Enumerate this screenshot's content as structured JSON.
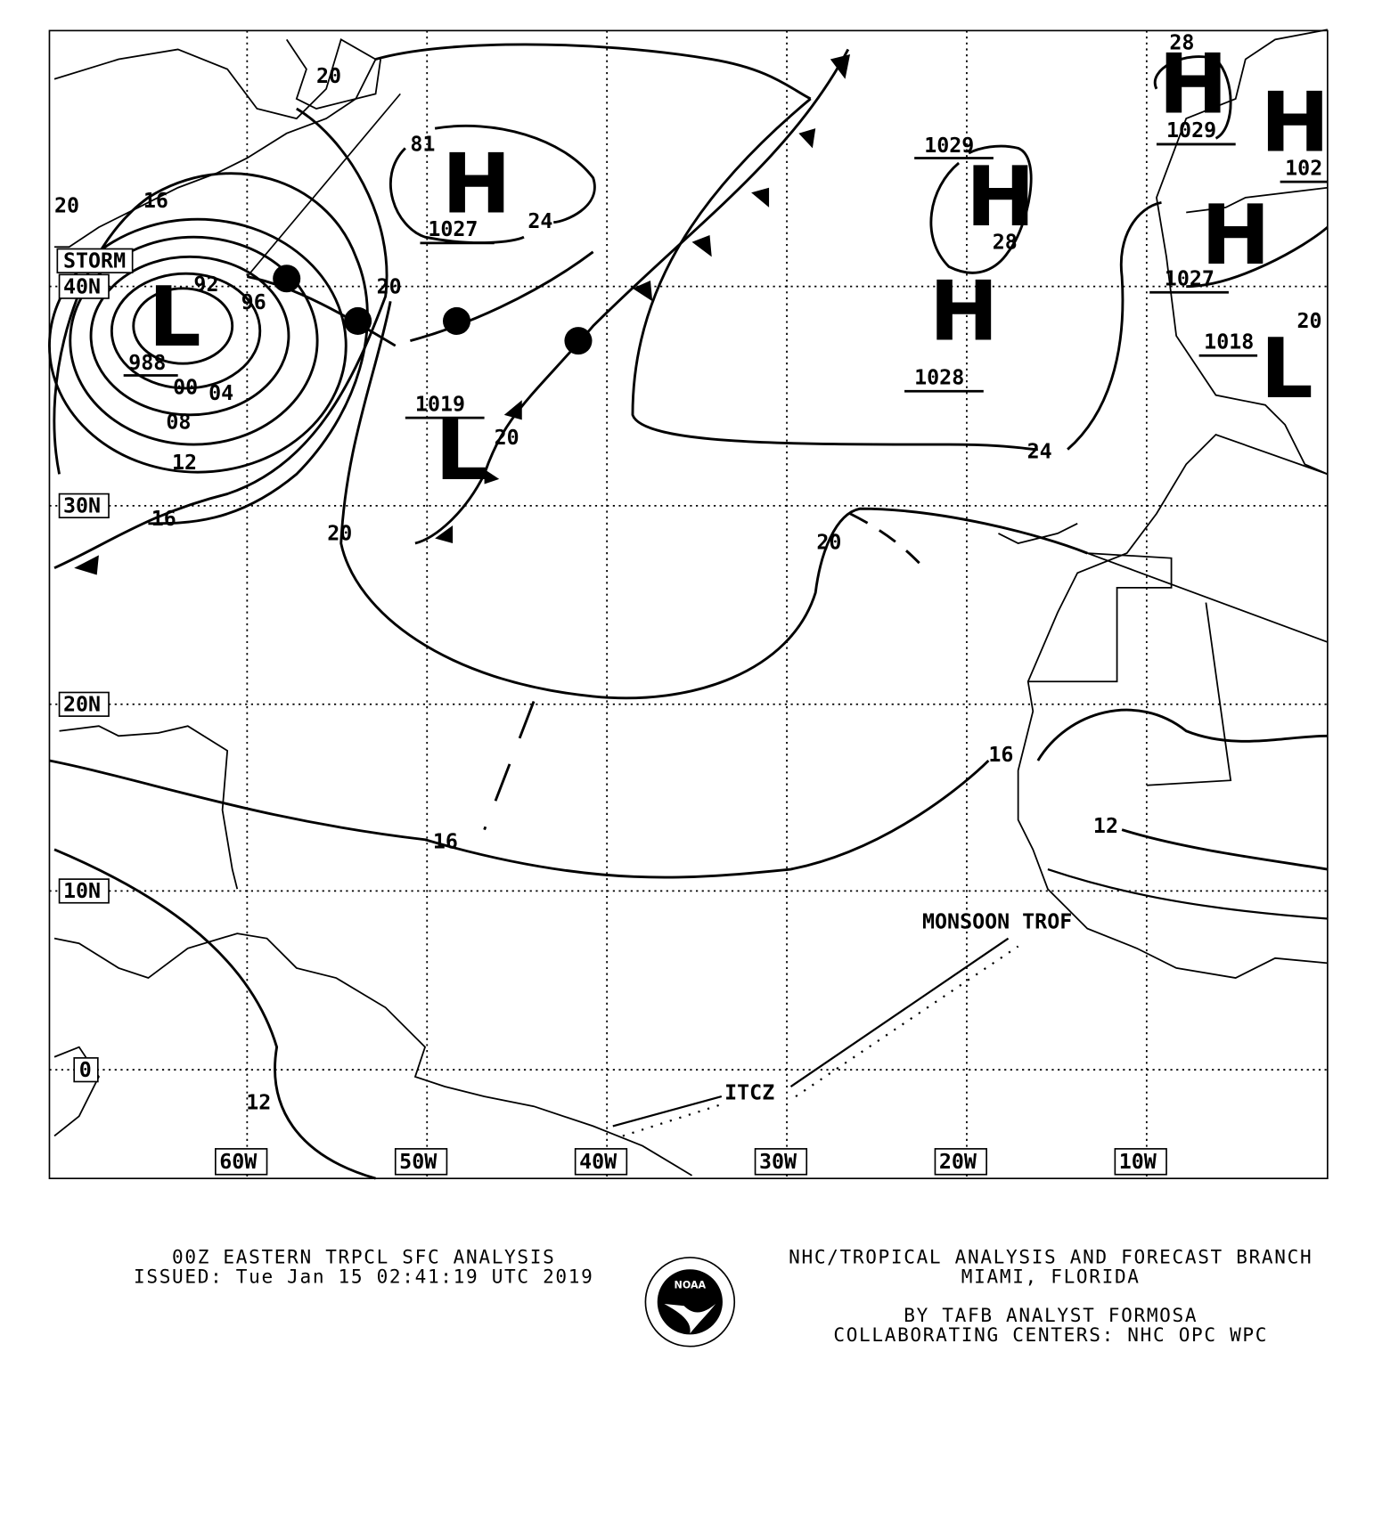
{
  "footer": {
    "title": "00Z EASTERN TRPCL SFC ANALYSIS",
    "issued": "ISSUED: Tue Jan 15 02:41:19 UTC 2019",
    "agency": "NHC/TROPICAL ANALYSIS AND FORECAST BRANCH",
    "location": "MIAMI,  FLORIDA",
    "analyst": "BY TAFB ANALYST  FORMOSA",
    "centers": "COLLABORATING CENTERS: NHC OPC WPC",
    "logo_text": "NOAA"
  },
  "grid": {
    "lat_labels": [
      "40N",
      "30N",
      "20N",
      "10N",
      "0"
    ],
    "lon_labels": [
      "60W",
      "50W",
      "40W",
      "30W",
      "20W",
      "10W"
    ]
  },
  "pressure_centers": [
    {
      "type": "L",
      "label": "988"
    },
    {
      "type": "H",
      "label": "1027"
    },
    {
      "type": "L",
      "label": "1019"
    },
    {
      "type": "H",
      "label": "1029"
    },
    {
      "type": "H",
      "label": "1028"
    },
    {
      "type": "H",
      "label": "1029"
    },
    {
      "type": "H",
      "label": "1027"
    },
    {
      "type": "L",
      "label": "1018"
    },
    {
      "type": "H",
      "label": "102"
    }
  ],
  "isobar_labels": [
    "20",
    "81",
    "16",
    "92",
    "96",
    "20",
    "24",
    "00",
    "04",
    "08",
    "12",
    "16",
    "20",
    "20",
    "28",
    "24",
    "20",
    "16",
    "12",
    "16",
    "12",
    "28",
    "20",
    "20"
  ],
  "features": {
    "storm": "STORM",
    "monsoon": "MONSOON TROF",
    "itcz": "ITCZ"
  }
}
